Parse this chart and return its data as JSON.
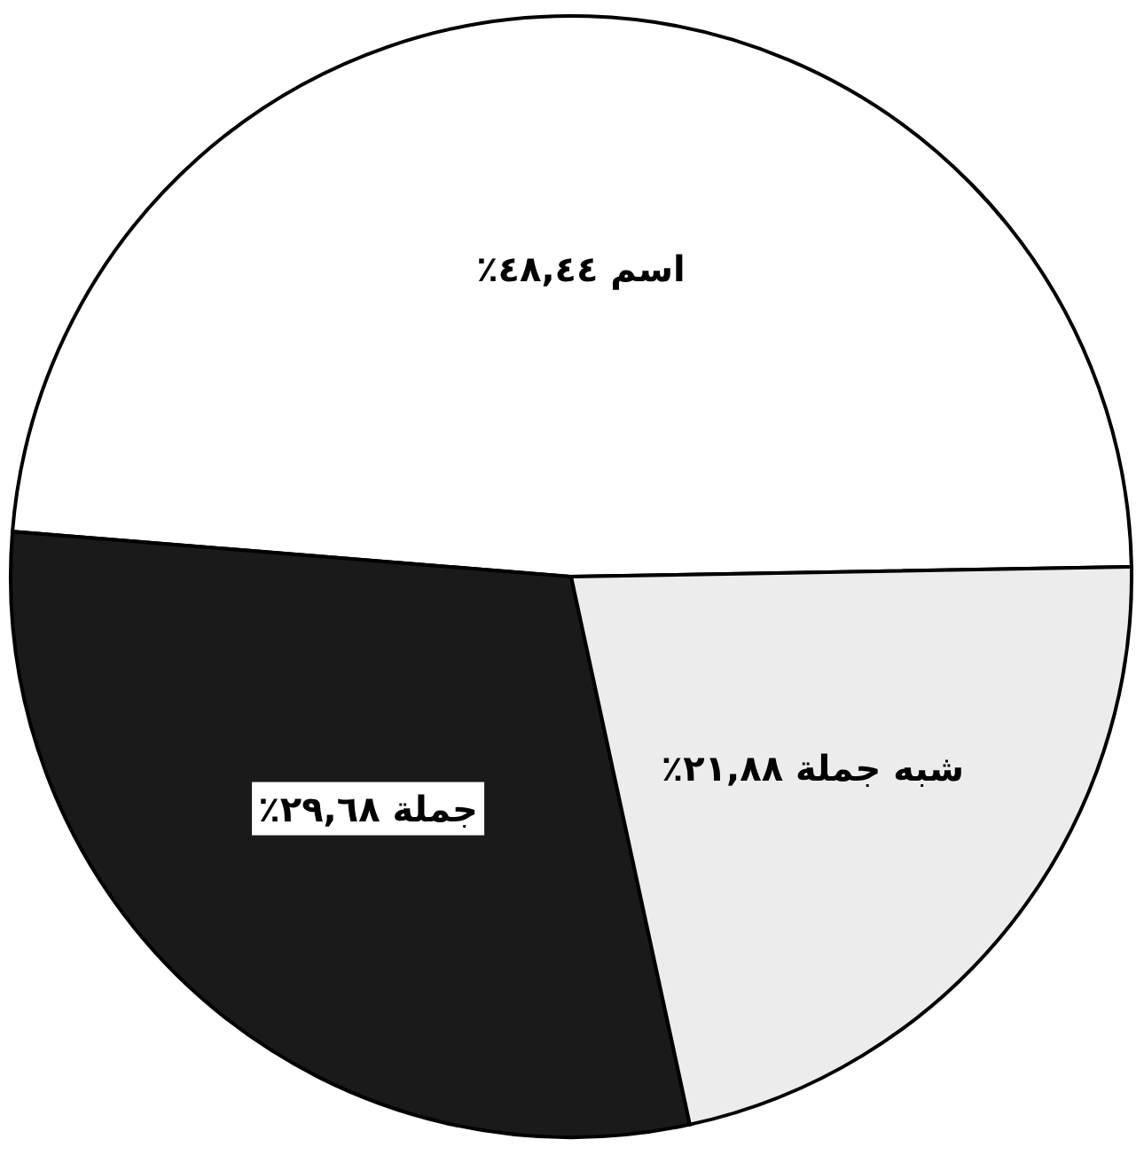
{
  "chart_data": {
    "type": "pie",
    "categories": [
      "اسم",
      "جملة",
      "شبه جملة"
    ],
    "values": [
      48.44,
      29.68,
      21.88
    ],
    "value_labels": [
      "٤٨,٤٤٪",
      "٢٩,٦٨٪",
      "٢١,٨٨٪"
    ],
    "colors": [
      "#ffffff",
      "#1a1a1a",
      "#ececec"
    ],
    "legend": false
  }
}
